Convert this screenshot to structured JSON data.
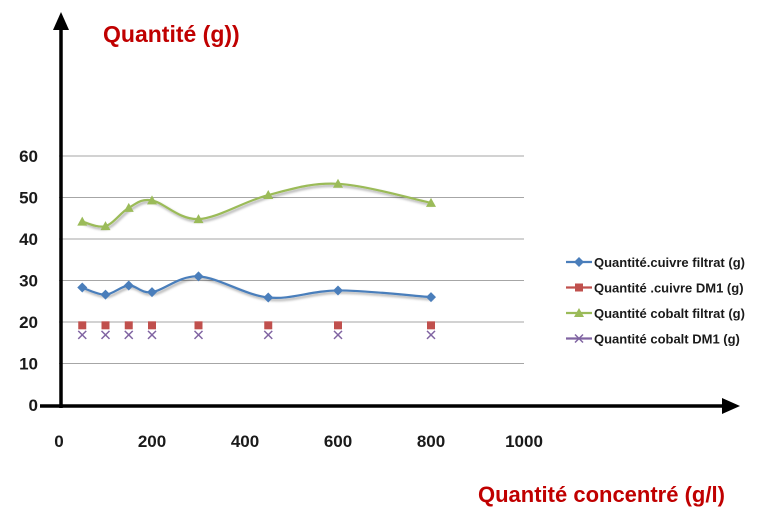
{
  "chart_data": {
    "type": "line",
    "title": "",
    "ylabel": "Quantité (g))",
    "xlabel": "Quantité concentré (g/l)",
    "xlim": [
      0,
      1000
    ],
    "ylim": [
      0,
      60
    ],
    "xticks": [
      "0",
      "200",
      "400",
      "600",
      "800",
      "1000"
    ],
    "yticks": [
      "0",
      "10",
      "20",
      "30",
      "40",
      "50",
      "60"
    ],
    "grid": "horizontal",
    "legend_position": "right",
    "series": [
      {
        "name": "Quantité.cuivre filtrat (g)",
        "color": "#4a7ebb",
        "marker": "diamond",
        "x": [
          50,
          100,
          150,
          200,
          300,
          450,
          600,
          800
        ],
        "values": [
          28.3,
          26.6,
          28.8,
          27.2,
          31.0,
          25.9,
          27.6,
          26.0
        ]
      },
      {
        "name": "Quantité .cuivre DM1 (g)",
        "color": "#c0504d",
        "marker": "square",
        "x": [
          50,
          100,
          150,
          200,
          300,
          450,
          600,
          800
        ],
        "values": [
          19.2,
          19.2,
          19.2,
          19.2,
          19.2,
          19.2,
          19.2,
          19.2
        ]
      },
      {
        "name": "Quantité  cobalt filtrat (g)",
        "color": "#9bbb59",
        "marker": "triangle",
        "x": [
          50,
          100,
          150,
          200,
          300,
          450,
          600,
          800
        ],
        "values": [
          44.2,
          43.1,
          47.5,
          49.3,
          44.8,
          50.6,
          53.3,
          48.7
        ]
      },
      {
        "name": "Quantité   cobalt DM1 (g)",
        "color": "#8064a2",
        "marker": "x",
        "x": [
          50,
          100,
          150,
          200,
          300,
          450,
          600,
          800
        ],
        "values": [
          16.9,
          16.9,
          16.9,
          16.9,
          16.9,
          16.9,
          16.9,
          16.9
        ]
      }
    ]
  }
}
